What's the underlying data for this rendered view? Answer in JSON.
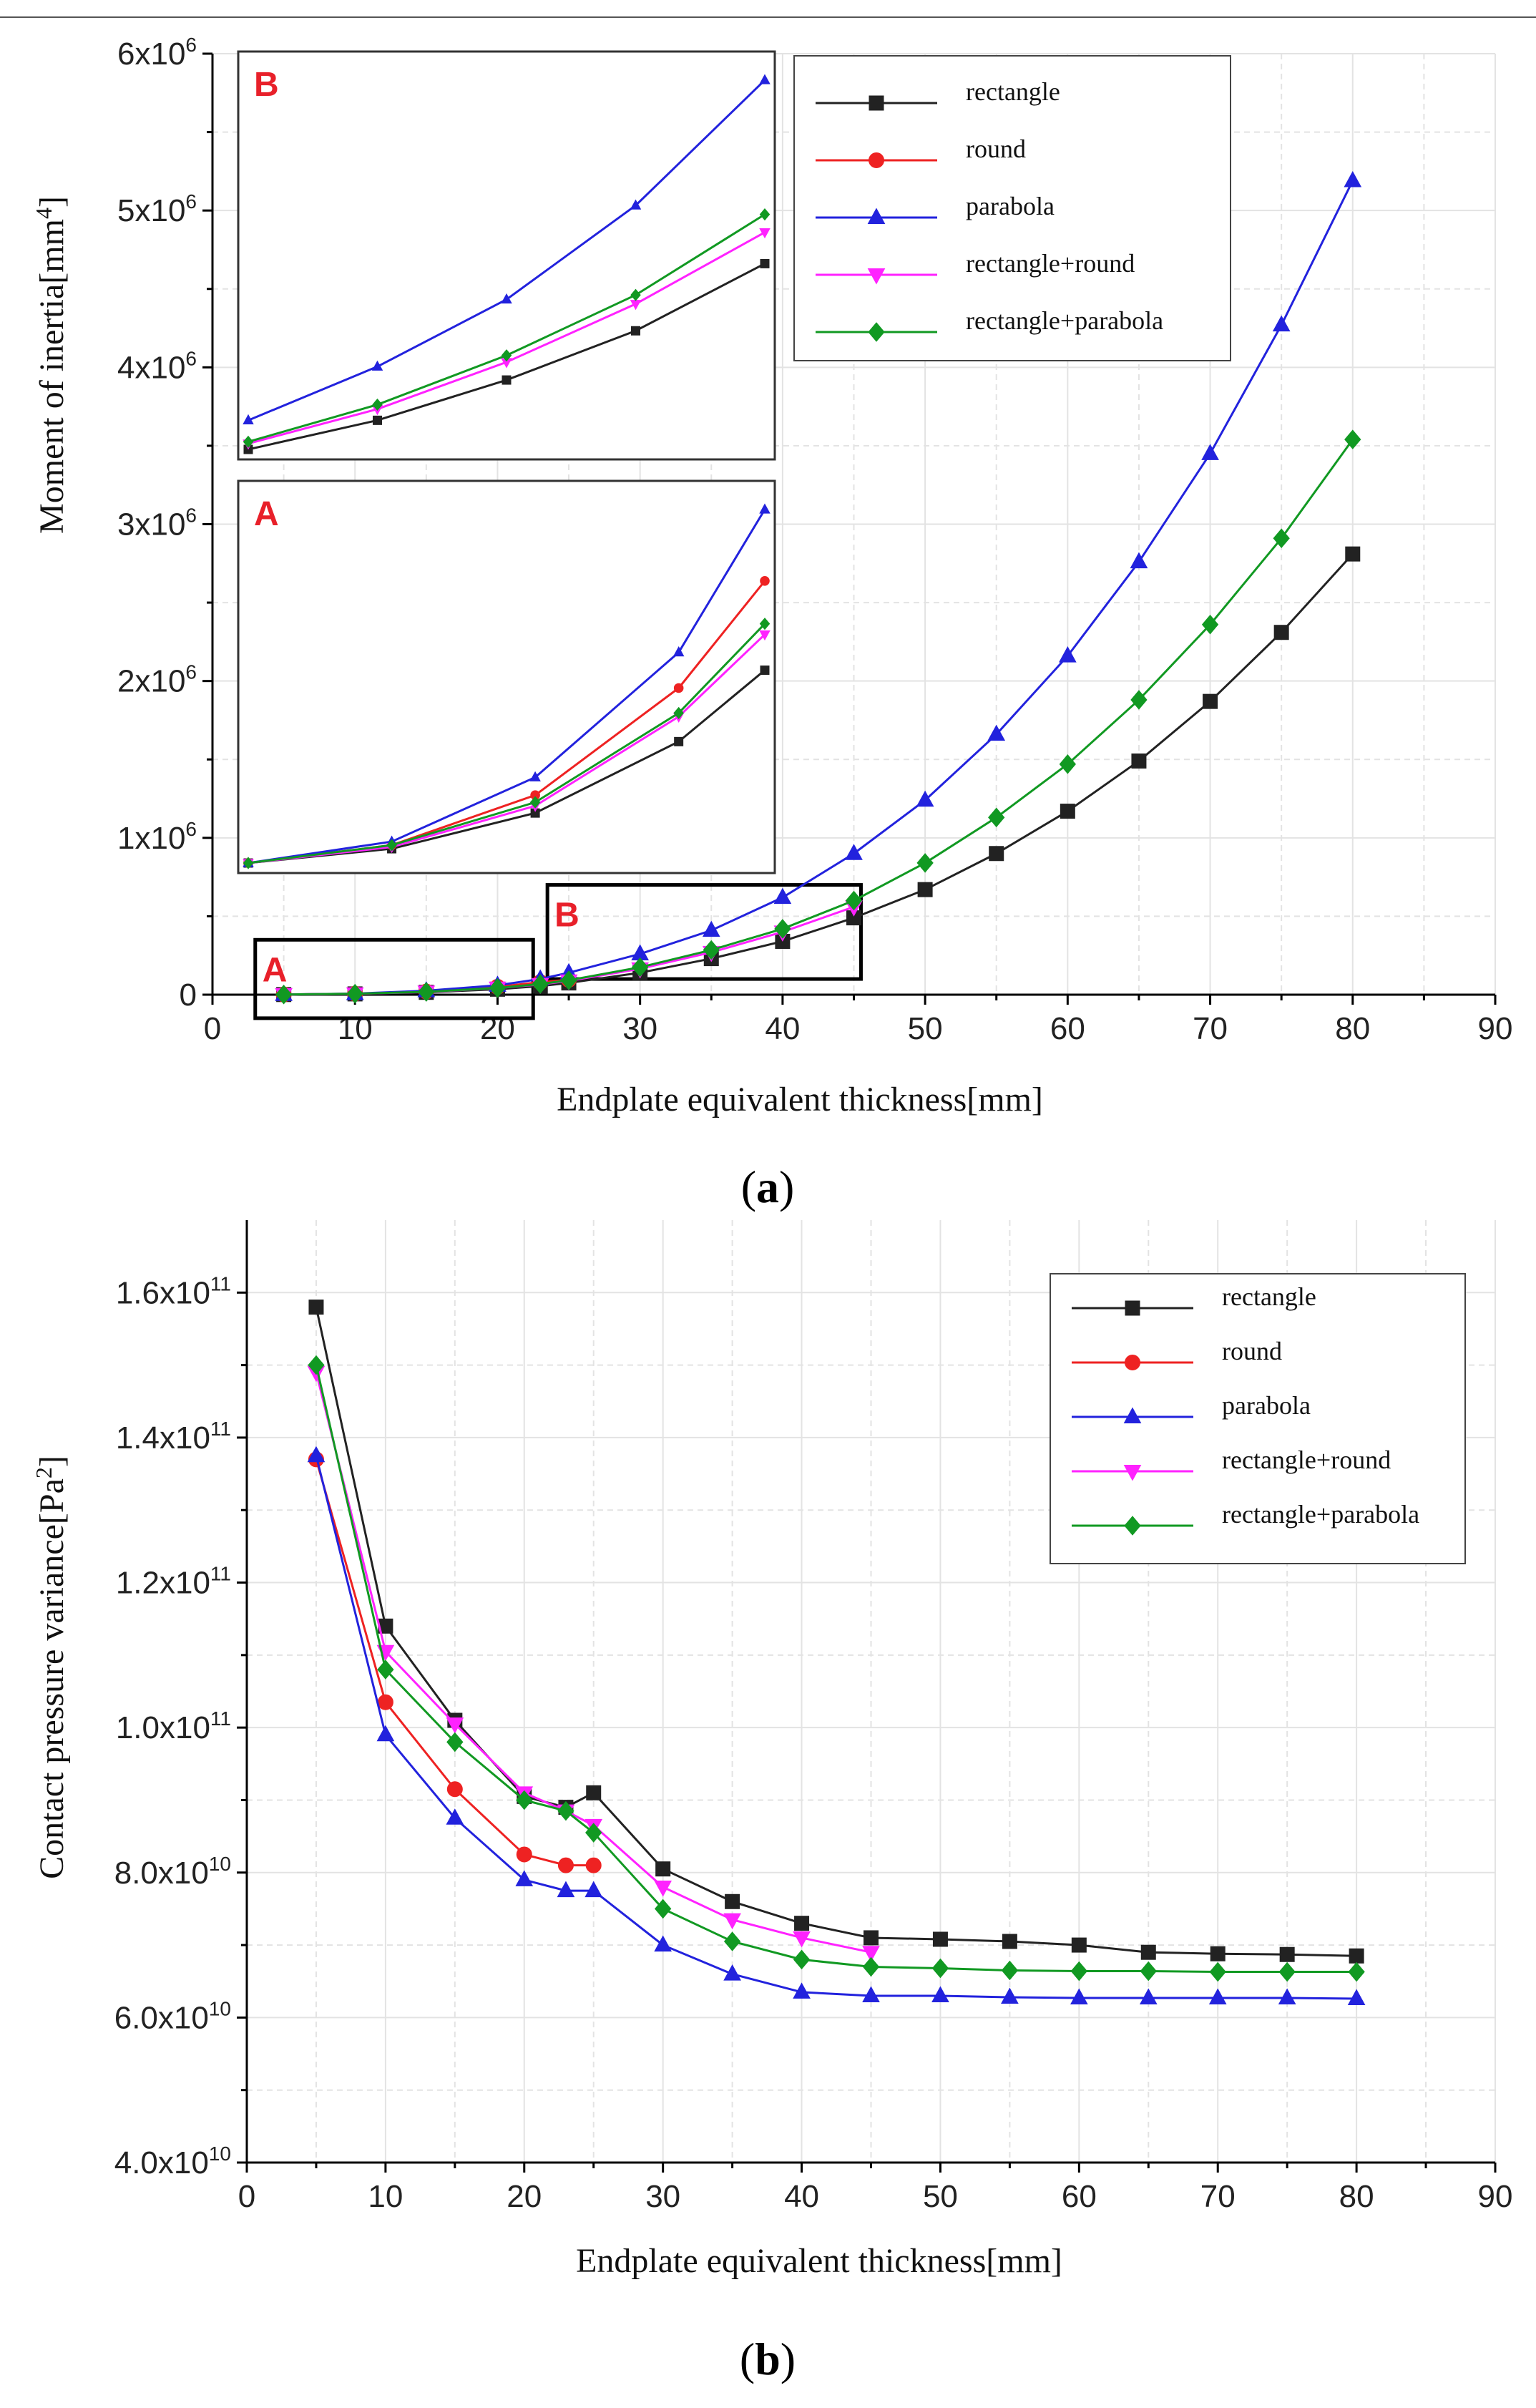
{
  "chart_data": [
    {
      "id": "a",
      "type": "line",
      "panel_label": "a",
      "xlabel": "Endplate equivalent thickness[mm]",
      "ylabel": "Moment of inertia[mm⁴]",
      "xlim": [
        0,
        90
      ],
      "ylim": [
        0,
        6000000
      ],
      "x_ticks": [
        0,
        10,
        20,
        30,
        40,
        50,
        60,
        70,
        80,
        90
      ],
      "y_ticks": [
        {
          "value": 0,
          "mantissa": "0",
          "exp": ""
        },
        {
          "value": 1000000,
          "mantissa": "1x10",
          "exp": "6"
        },
        {
          "value": 2000000,
          "mantissa": "2x10",
          "exp": "6"
        },
        {
          "value": 3000000,
          "mantissa": "3x10",
          "exp": "6"
        },
        {
          "value": 4000000,
          "mantissa": "4x10",
          "exp": "6"
        },
        {
          "value": 5000000,
          "mantissa": "5x10",
          "exp": "6"
        },
        {
          "value": 6000000,
          "mantissa": "6x10",
          "exp": "6"
        }
      ],
      "grid": true,
      "legend_position": "top-right",
      "series": [
        {
          "name": "rectangle",
          "color": "#222222",
          "marker": "square",
          "x": [
            5,
            10,
            15,
            20,
            23,
            25,
            30,
            35,
            40,
            45,
            50,
            55,
            60,
            65,
            70,
            75,
            80
          ],
          "values": [
            1000,
            5000,
            15000,
            35000,
            55000,
            75000,
            140000,
            230000,
            340000,
            490000,
            670000,
            900000,
            1170000,
            1490000,
            1870000,
            2310000,
            2810000
          ]
        },
        {
          "name": "round",
          "color": "#ee2222",
          "marker": "circle",
          "x": [
            5,
            10,
            15,
            20,
            23,
            25
          ],
          "values": [
            1000,
            6000,
            20000,
            50000,
            80000,
            95000
          ]
        },
        {
          "name": "parabola",
          "color": "#2222dd",
          "marker": "triangle-up",
          "x": [
            5,
            10,
            15,
            20,
            23,
            25,
            30,
            35,
            40,
            45,
            50,
            55,
            60,
            65,
            70,
            75,
            80
          ],
          "values": [
            1000,
            7000,
            25000,
            60000,
            100000,
            140000,
            260000,
            410000,
            620000,
            900000,
            1240000,
            1660000,
            2160000,
            2760000,
            3450000,
            4270000,
            5190000
          ]
        },
        {
          "name": "rectangle+round",
          "color": "#ff22ff",
          "marker": "triangle-down",
          "x": [
            5,
            10,
            15,
            20,
            23,
            25,
            30,
            35,
            40,
            45
          ],
          "values": [
            1000,
            5500,
            17000,
            42000,
            65000,
            88000,
            165000,
            270000,
            400000,
            560000
          ]
        },
        {
          "name": "rectangle+parabola",
          "color": "#119922",
          "marker": "diamond",
          "x": [
            5,
            10,
            15,
            20,
            23,
            25,
            30,
            35,
            40,
            45,
            50,
            55,
            60,
            65,
            70,
            75,
            80
          ],
          "values": [
            1000,
            6000,
            18000,
            43000,
            68000,
            92000,
            175000,
            285000,
            420000,
            600000,
            840000,
            1130000,
            1470000,
            1880000,
            2360000,
            2910000,
            3540000
          ]
        }
      ],
      "zoom_boxes": [
        {
          "label": "A",
          "x_range": [
            3,
            22.5
          ],
          "y_range": [
            -150000,
            350000
          ]
        },
        {
          "label": "B",
          "x_range": [
            23.5,
            45.5
          ],
          "y_range": [
            100000,
            700000
          ]
        }
      ],
      "insets": [
        {
          "label": "B",
          "series": [
            {
              "name": "rectangle",
              "color": "#222222",
              "marker": "square",
              "x": [
                25,
                30,
                35,
                40,
                45
              ],
              "values": [
                75000,
                140000,
                230000,
                340000,
                490000
              ]
            },
            {
              "name": "parabola",
              "color": "#2222dd",
              "marker": "triangle-up",
              "x": [
                25,
                30,
                35,
                40,
                45
              ],
              "values": [
                140000,
                260000,
                410000,
                620000,
                900000
              ]
            },
            {
              "name": "rectangle+round",
              "color": "#ff22ff",
              "marker": "triangle-down",
              "x": [
                25,
                30,
                35,
                40,
                45
              ],
              "values": [
                88000,
                165000,
                270000,
                400000,
                560000
              ]
            },
            {
              "name": "rectangle+parabola",
              "color": "#119922",
              "marker": "diamond",
              "x": [
                25,
                30,
                35,
                40,
                45
              ],
              "values": [
                92000,
                175000,
                285000,
                420000,
                600000
              ]
            }
          ]
        },
        {
          "label": "A",
          "series": [
            {
              "name": "rectangle",
              "color": "#222222",
              "marker": "square",
              "x": [
                5,
                10,
                15,
                20,
                23
              ],
              "values": [
                1000,
                5000,
                15000,
                35000,
                55000
              ]
            },
            {
              "name": "round",
              "color": "#ee2222",
              "marker": "circle",
              "x": [
                5,
                10,
                15,
                20,
                23
              ],
              "values": [
                1000,
                6000,
                20000,
                50000,
                80000
              ]
            },
            {
              "name": "parabola",
              "color": "#2222dd",
              "marker": "triangle-up",
              "x": [
                5,
                10,
                15,
                20,
                23
              ],
              "values": [
                1000,
                7000,
                25000,
                60000,
                100000
              ]
            },
            {
              "name": "rectangle+round",
              "color": "#ff22ff",
              "marker": "triangle-down",
              "x": [
                5,
                10,
                15,
                20,
                23
              ],
              "values": [
                1000,
                5500,
                17000,
                42000,
                65000
              ]
            },
            {
              "name": "rectangle+parabola",
              "color": "#119922",
              "marker": "diamond",
              "x": [
                5,
                10,
                15,
                20,
                23
              ],
              "values": [
                1000,
                6000,
                18000,
                43000,
                68000
              ]
            }
          ]
        }
      ]
    },
    {
      "id": "b",
      "type": "line",
      "panel_label": "b",
      "xlabel": "Endplate equivalent thickness[mm]",
      "ylabel": "Contact pressure variance[Pa²]",
      "xlim": [
        0,
        90
      ],
      "ylim": [
        40000000000,
        170000000000
      ],
      "x_ticks": [
        0,
        10,
        20,
        30,
        40,
        50,
        60,
        70,
        80,
        90
      ],
      "y_ticks": [
        {
          "value": 40000000000,
          "mantissa": "4.0x10",
          "exp": "10"
        },
        {
          "value": 60000000000,
          "mantissa": "6.0x10",
          "exp": "10"
        },
        {
          "value": 80000000000,
          "mantissa": "8.0x10",
          "exp": "10"
        },
        {
          "value": 100000000000,
          "mantissa": "1.0x10",
          "exp": "11"
        },
        {
          "value": 120000000000,
          "mantissa": "1.2x10",
          "exp": "11"
        },
        {
          "value": 140000000000,
          "mantissa": "1.4x10",
          "exp": "11"
        },
        {
          "value": 160000000000,
          "mantissa": "1.6x10",
          "exp": "11"
        }
      ],
      "grid": true,
      "legend_position": "top-right",
      "series": [
        {
          "name": "rectangle",
          "color": "#222222",
          "marker": "square",
          "x": [
            5,
            10,
            15,
            20,
            23,
            25,
            30,
            35,
            40,
            45,
            50,
            55,
            60,
            65,
            70,
            75,
            80
          ],
          "values": [
            158000000000,
            114000000000,
            101000000000,
            90500000000,
            89000000000,
            91000000000,
            80500000000,
            76000000000,
            73000000000,
            71000000000,
            70800000000,
            70500000000,
            70000000000,
            69000000000,
            68800000000,
            68700000000,
            68500000000
          ]
        },
        {
          "name": "round",
          "color": "#ee2222",
          "marker": "circle",
          "x": [
            5,
            10,
            15,
            20,
            23,
            25
          ],
          "values": [
            137000000000,
            103500000000,
            91500000000,
            82500000000,
            81000000000,
            81000000000
          ]
        },
        {
          "name": "parabola",
          "color": "#2222dd",
          "marker": "triangle-up",
          "x": [
            5,
            10,
            15,
            20,
            23,
            25,
            30,
            35,
            40,
            45,
            50,
            55,
            60,
            65,
            70,
            75,
            80
          ],
          "values": [
            137500000000,
            99000000000,
            87500000000,
            79000000000,
            77500000000,
            77500000000,
            70000000000,
            66000000000,
            63500000000,
            63000000000,
            63000000000,
            62800000000,
            62700000000,
            62700000000,
            62700000000,
            62700000000,
            62600000000
          ]
        },
        {
          "name": "rectangle+round",
          "color": "#ff22ff",
          "marker": "triangle-down",
          "x": [
            5,
            10,
            15,
            20,
            23,
            25,
            30,
            35,
            40,
            45
          ],
          "values": [
            149000000000,
            110500000000,
            100500000000,
            91000000000,
            88500000000,
            86500000000,
            78000000000,
            73500000000,
            71000000000,
            69000000000
          ]
        },
        {
          "name": "rectangle+parabola",
          "color": "#119922",
          "marker": "diamond",
          "x": [
            5,
            10,
            15,
            20,
            23,
            25,
            30,
            35,
            40,
            45,
            50,
            55,
            60,
            65,
            70,
            75,
            80
          ],
          "values": [
            150000000000,
            108000000000,
            98000000000,
            90000000000,
            88500000000,
            85500000000,
            75000000000,
            70500000000,
            68000000000,
            67000000000,
            66800000000,
            66500000000,
            66400000000,
            66400000000,
            66300000000,
            66300000000,
            66300000000
          ]
        }
      ]
    }
  ]
}
